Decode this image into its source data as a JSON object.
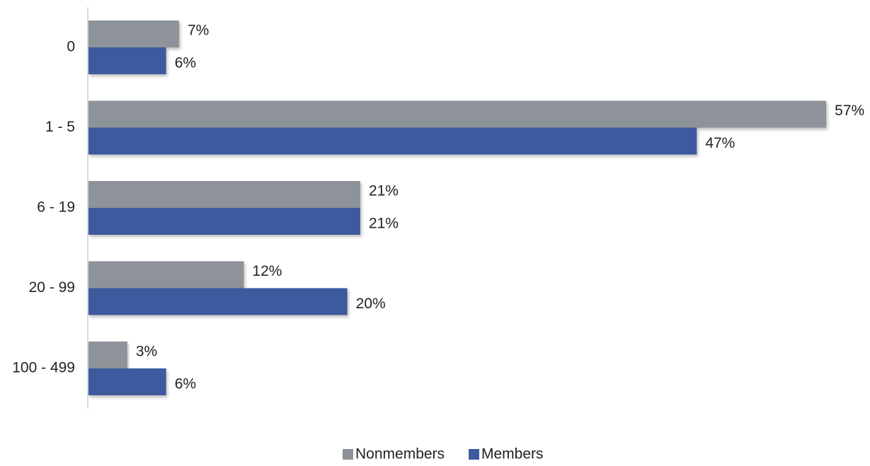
{
  "chart_data": {
    "type": "hbar",
    "categories": [
      "0",
      "1 - 5",
      "6 - 19",
      "20 - 99",
      "100 - 499"
    ],
    "series": [
      {
        "name": "Nonmembers",
        "color": "#8d9398",
        "values": [
          7,
          57,
          21,
          12,
          3
        ],
        "value_labels": [
          "7%",
          "57%",
          "21%",
          "12%",
          "3%"
        ]
      },
      {
        "name": "Members",
        "color": "#3e5a9f",
        "values": [
          6,
          47,
          21,
          20,
          6
        ],
        "value_labels": [
          "6%",
          "47%",
          "21%",
          "20%",
          "6%"
        ]
      }
    ],
    "xlim": [
      0,
      60
    ],
    "legend": "bottom"
  }
}
